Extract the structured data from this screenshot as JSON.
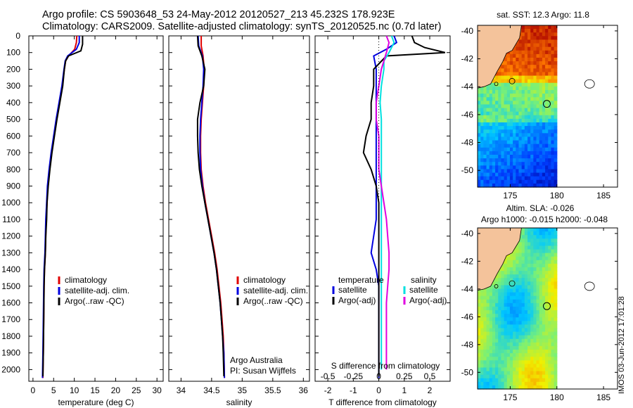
{
  "header": {
    "line1": "Argo profile: CS 5903648_53 24-May-2012 20120527_213 45.232S 178.923E",
    "line2": "Climatology: CARS2009. Satellite-adjusted climatology: synTS_20120525.nc (0.7d later)"
  },
  "footer": "IMOS 03-Jun-2012 17:01:28",
  "chart_data": [
    {
      "id": "temp",
      "type": "line",
      "xlabel": "temperature (deg C)",
      "ylabel": "depth",
      "xlim": [
        -1,
        31.5
      ],
      "ylim": [
        2070,
        0
      ],
      "xticks": [
        0,
        5,
        10,
        15,
        20,
        25,
        30
      ],
      "yticks": [
        0,
        100,
        200,
        300,
        400,
        500,
        600,
        700,
        800,
        900,
        1000,
        1100,
        1200,
        1300,
        1400,
        1500,
        1600,
        1700,
        1800,
        1900,
        2000
      ],
      "legend": [
        "climatology",
        "satellite-adj. clim.",
        "Argo(..raw -QC)"
      ],
      "legend_colors": [
        "#e00000",
        "#0000e0",
        "#000000"
      ],
      "series": [
        {
          "name": "climatology",
          "color": "#e00000",
          "points": [
            [
              10.6,
              0
            ],
            [
              10.5,
              40
            ],
            [
              10.1,
              80
            ],
            [
              8.6,
              120
            ],
            [
              7.9,
              150
            ],
            [
              7.6,
              200
            ],
            [
              7.1,
              300
            ],
            [
              6.4,
              400
            ],
            [
              5.7,
              500
            ],
            [
              5.1,
              600
            ],
            [
              4.5,
              700
            ],
            [
              4.0,
              800
            ],
            [
              3.6,
              900
            ],
            [
              3.4,
              1000
            ],
            [
              3.2,
              1100
            ],
            [
              3.1,
              1200
            ],
            [
              3.0,
              1300
            ],
            [
              2.8,
              1400
            ],
            [
              2.7,
              1500
            ],
            [
              2.6,
              1700
            ],
            [
              2.5,
              1900
            ],
            [
              2.4,
              2050
            ]
          ]
        },
        {
          "name": "satellite-adj. clim.",
          "color": "#0000e0",
          "points": [
            [
              11.2,
              0
            ],
            [
              11.2,
              40
            ],
            [
              10.5,
              80
            ],
            [
              8.4,
              120
            ],
            [
              7.8,
              150
            ],
            [
              7.5,
              200
            ],
            [
              7.0,
              300
            ],
            [
              6.3,
              400
            ],
            [
              5.6,
              500
            ],
            [
              5.0,
              600
            ],
            [
              4.4,
              700
            ],
            [
              3.9,
              800
            ],
            [
              3.5,
              900
            ],
            [
              3.3,
              1000
            ],
            [
              3.1,
              1100
            ],
            [
              3.0,
              1200
            ],
            [
              2.9,
              1300
            ],
            [
              2.7,
              1400
            ],
            [
              2.6,
              1500
            ],
            [
              2.5,
              1700
            ],
            [
              2.4,
              1900
            ],
            [
              2.3,
              2050
            ]
          ]
        },
        {
          "name": "Argo(..raw -QC)",
          "color": "#000000",
          "points": [
            [
              12.0,
              0
            ],
            [
              12.0,
              50
            ],
            [
              11.6,
              90
            ],
            [
              8.6,
              120
            ],
            [
              7.9,
              150
            ],
            [
              7.6,
              200
            ],
            [
              7.2,
              300
            ],
            [
              6.5,
              400
            ],
            [
              5.8,
              500
            ],
            [
              5.2,
              600
            ],
            [
              4.6,
              700
            ],
            [
              4.1,
              800
            ],
            [
              3.7,
              900
            ],
            [
              3.4,
              1000
            ],
            [
              3.3,
              1100
            ],
            [
              3.1,
              1200
            ],
            [
              3.0,
              1300
            ],
            [
              2.8,
              1400
            ],
            [
              2.7,
              1500
            ],
            [
              2.6,
              1700
            ],
            [
              2.5,
              1900
            ],
            [
              2.4,
              2040
            ]
          ]
        }
      ]
    },
    {
      "id": "sal",
      "type": "line",
      "xlabel": "salinity",
      "xlim": [
        33.8,
        36.1
      ],
      "ylim": [
        2070,
        0
      ],
      "xticks": [
        34,
        34.5,
        35,
        35.5,
        36
      ],
      "legend": [
        "climatology",
        "satellite-adj. clim.",
        "Argo(..raw -QC)"
      ],
      "legend_colors": [
        "#e00000",
        "#0000e0",
        "#000000"
      ],
      "annotation": [
        "Argo Australia",
        "PI: Susan Wijffels"
      ],
      "series": [
        {
          "name": "climatology",
          "color": "#e00000",
          "points": [
            [
              34.33,
              0
            ],
            [
              34.33,
              60
            ],
            [
              34.36,
              120
            ],
            [
              34.38,
              200
            ],
            [
              34.37,
              300
            ],
            [
              34.35,
              400
            ],
            [
              34.33,
              500
            ],
            [
              34.32,
              600
            ],
            [
              34.32,
              700
            ],
            [
              34.33,
              800
            ],
            [
              34.36,
              900
            ],
            [
              34.4,
              1000
            ],
            [
              34.45,
              1100
            ],
            [
              34.5,
              1200
            ],
            [
              34.55,
              1300
            ],
            [
              34.59,
              1400
            ],
            [
              34.62,
              1500
            ],
            [
              34.65,
              1600
            ],
            [
              34.67,
              1700
            ],
            [
              34.69,
              1800
            ],
            [
              34.7,
              1900
            ],
            [
              34.71,
              2050
            ]
          ]
        },
        {
          "name": "satellite-adj. clim.",
          "color": "#0000e0",
          "points": [
            [
              34.28,
              0
            ],
            [
              34.29,
              60
            ],
            [
              34.35,
              120
            ],
            [
              34.37,
              200
            ],
            [
              34.36,
              300
            ],
            [
              34.34,
              400
            ],
            [
              34.32,
              500
            ],
            [
              34.31,
              600
            ],
            [
              34.31,
              700
            ],
            [
              34.32,
              800
            ],
            [
              34.35,
              900
            ],
            [
              34.39,
              1000
            ],
            [
              34.44,
              1100
            ],
            [
              34.49,
              1200
            ],
            [
              34.54,
              1300
            ],
            [
              34.58,
              1400
            ],
            [
              34.61,
              1500
            ],
            [
              34.64,
              1600
            ],
            [
              34.66,
              1700
            ],
            [
              34.68,
              1800
            ],
            [
              34.7,
              1900
            ],
            [
              34.71,
              2050
            ]
          ]
        },
        {
          "name": "Argo(..raw -QC)",
          "color": "#000000",
          "points": [
            [
              34.27,
              0
            ],
            [
              34.28,
              60
            ],
            [
              34.34,
              120
            ],
            [
              34.39,
              200
            ],
            [
              34.37,
              300
            ],
            [
              34.31,
              400
            ],
            [
              34.27,
              500
            ],
            [
              34.27,
              600
            ],
            [
              34.28,
              700
            ],
            [
              34.3,
              800
            ],
            [
              34.34,
              900
            ],
            [
              34.39,
              1000
            ],
            [
              34.44,
              1100
            ],
            [
              34.49,
              1200
            ],
            [
              34.54,
              1300
            ],
            [
              34.58,
              1400
            ],
            [
              34.61,
              1500
            ],
            [
              34.64,
              1600
            ],
            [
              34.66,
              1700
            ],
            [
              34.68,
              1800
            ],
            [
              34.69,
              1900
            ],
            [
              34.7,
              2040
            ]
          ]
        }
      ]
    },
    {
      "id": "diff",
      "type": "line",
      "xlabel": "T difference from climatology",
      "top_label": "S difference from climatology",
      "xlim": [
        -2.5,
        2.8
      ],
      "ylim": [
        2070,
        0
      ],
      "xticks": [
        -2,
        -1,
        0,
        1,
        2
      ],
      "top_ticks": [
        -0.5,
        -0.25,
        0,
        0.25,
        0.5
      ],
      "top_tick_positions": [
        -2,
        -1,
        0,
        1,
        2
      ],
      "legend_temperature_title": "temperature",
      "legend_salinity_title": "salinity",
      "legend_left": [
        "satellite",
        "Argo(-adj)"
      ],
      "legend_left_colors": [
        "#0000e0",
        "#000000"
      ],
      "legend_right": [
        "satellite",
        "Argo(-adj)"
      ],
      "legend_right_colors": [
        "#00e0e0",
        "#e000e0"
      ],
      "series": [
        {
          "name": "T satellite",
          "color": "#0000e0",
          "points": [
            [
              0.6,
              0
            ],
            [
              0.7,
              40
            ],
            [
              0.3,
              80
            ],
            [
              -0.2,
              120
            ],
            [
              -0.1,
              200
            ],
            [
              -0.1,
              300
            ],
            [
              -0.1,
              400
            ],
            [
              -0.1,
              500
            ],
            [
              -0.1,
              600
            ],
            [
              -0.1,
              700
            ],
            [
              -0.1,
              800
            ],
            [
              -0.1,
              900
            ],
            [
              -0.1,
              1000
            ],
            [
              -0.1,
              1100
            ],
            [
              -0.2,
              1200
            ],
            [
              -0.3,
              1300
            ],
            [
              -0.1,
              1400
            ],
            [
              0,
              1500
            ],
            [
              0,
              1700
            ],
            [
              0,
              1900
            ],
            [
              0,
              2050
            ]
          ]
        },
        {
          "name": "T Argo(-adj)",
          "color": "#000000",
          "points": [
            [
              1.3,
              0
            ],
            [
              1.4,
              40
            ],
            [
              1.8,
              70
            ],
            [
              2.6,
              100
            ],
            [
              0.3,
              120
            ],
            [
              -0.2,
              200
            ],
            [
              -0.2,
              300
            ],
            [
              -0.3,
              400
            ],
            [
              -0.3,
              500
            ],
            [
              -0.5,
              600
            ],
            [
              -0.6,
              700
            ],
            [
              -0.3,
              800
            ],
            [
              -0.1,
              900
            ],
            [
              0,
              1000
            ],
            [
              0,
              1100
            ],
            [
              0,
              1300
            ],
            [
              0,
              1500
            ],
            [
              0,
              1700
            ],
            [
              0,
              1900
            ],
            [
              0,
              2040
            ]
          ]
        },
        {
          "name": "S satellite",
          "color": "#00e0e0",
          "points": [
            [
              0.5,
              0
            ],
            [
              0.6,
              40
            ],
            [
              0.4,
              100
            ],
            [
              0.2,
              150
            ],
            [
              0.2,
              200
            ],
            [
              0.1,
              300
            ],
            [
              0.05,
              400
            ],
            [
              0.1,
              500
            ],
            [
              0.1,
              600
            ],
            [
              0.1,
              700
            ],
            [
              0.1,
              800
            ],
            [
              0.1,
              900
            ],
            [
              0.1,
              1000
            ],
            [
              0.1,
              1100
            ],
            [
              0.1,
              1200
            ],
            [
              0.1,
              1300
            ],
            [
              0.1,
              1400
            ],
            [
              0.1,
              1600
            ],
            [
              0.1,
              1800
            ],
            [
              0.1,
              2000
            ]
          ]
        },
        {
          "name": "S Argo(-adj)",
          "color": "#e000e0",
          "points": [
            [
              0.3,
              0
            ],
            [
              0.4,
              40
            ],
            [
              0.3,
              100
            ],
            [
              0.2,
              150
            ],
            [
              0.1,
              200
            ],
            [
              0,
              300
            ],
            [
              -0.1,
              400
            ],
            [
              -0.1,
              500
            ],
            [
              0,
              600
            ],
            [
              0,
              700
            ],
            [
              0,
              800
            ],
            [
              0.1,
              900
            ],
            [
              0.2,
              1000
            ],
            [
              0.3,
              1100
            ],
            [
              0.35,
              1200
            ],
            [
              0.4,
              1300
            ],
            [
              0.4,
              1400
            ],
            [
              0.35,
              1500
            ],
            [
              0.3,
              1600
            ],
            [
              0.3,
              1700
            ],
            [
              0.3,
              1800
            ],
            [
              0.3,
              1900
            ],
            [
              0.3,
              2000
            ]
          ]
        }
      ]
    },
    {
      "id": "sst_map",
      "type": "heatmap",
      "title": "sat. SST: 12.3  Argo: 11.8",
      "xlim": [
        171.5,
        186.5
      ],
      "ylim": [
        -51.2,
        -39.6
      ],
      "xticks": [
        175,
        180,
        185
      ],
      "yticks": [
        -40,
        -42,
        -44,
        -46,
        -48,
        -50
      ],
      "profile_location": [
        178.923,
        -45.232
      ]
    },
    {
      "id": "sla_map",
      "type": "heatmap",
      "title_line1": "Altim. SLA: -0.026",
      "title_line2": "Argo h1000: -0.015 h2000: -0.048",
      "xlim": [
        171.5,
        186.5
      ],
      "ylim": [
        -51.2,
        -39.6
      ],
      "xticks": [
        175,
        180,
        185
      ],
      "yticks": [
        -40,
        -42,
        -44,
        -46,
        -48,
        -50
      ],
      "profile_location": [
        178.923,
        -45.232
      ]
    }
  ]
}
